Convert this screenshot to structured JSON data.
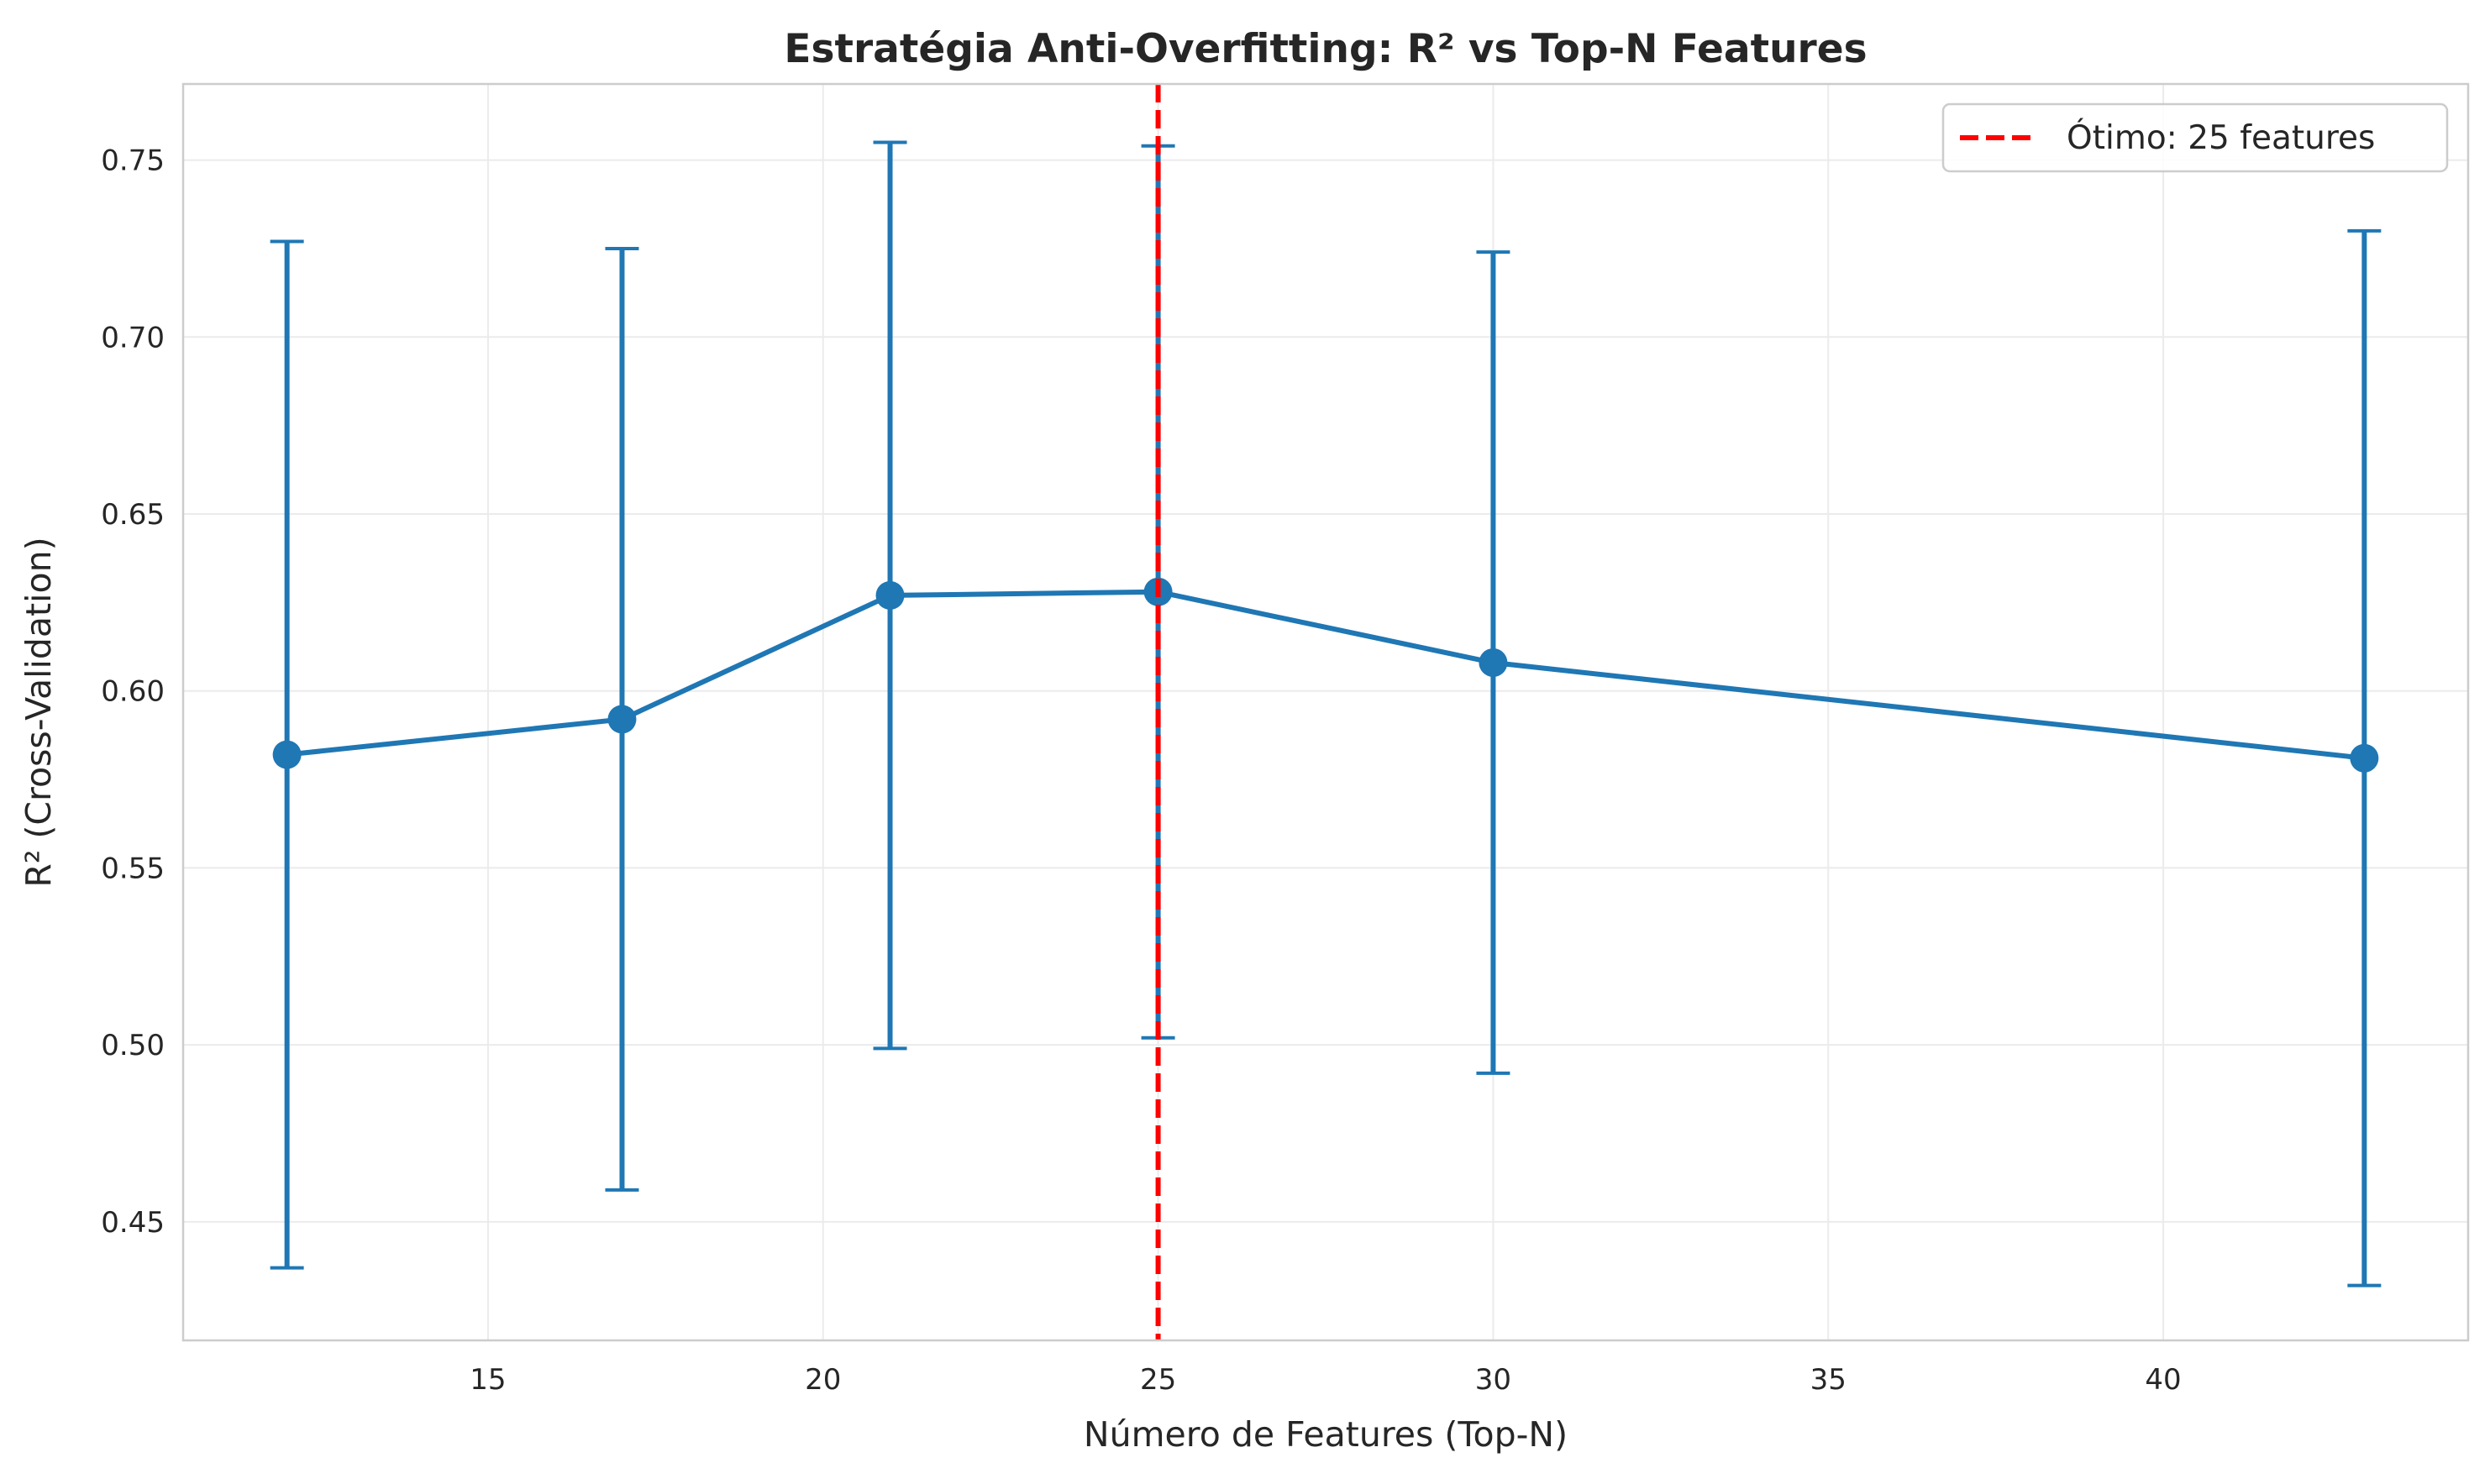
{
  "chart_data": {
    "type": "line",
    "title": "Estratégia Anti-Overfitting: R² vs Top-N Features",
    "xlabel": "Número de Features (Top-N)",
    "ylabel": "R² (Cross-Validation)",
    "xlim": [
      10.45,
      44.55
    ],
    "ylim": [
      0.4165,
      0.7715
    ],
    "x_ticks": [
      15,
      20,
      25,
      30,
      35,
      40
    ],
    "y_ticks": [
      0.45,
      0.5,
      0.55,
      0.6,
      0.65,
      0.7,
      0.75
    ],
    "grid": true,
    "series": [
      {
        "x": [
          12,
          17,
          21,
          25,
          30,
          43
        ],
        "y": [
          0.582,
          0.592,
          0.627,
          0.628,
          0.608,
          0.581
        ],
        "error": [
          0.145,
          0.133,
          0.128,
          0.126,
          0.116,
          0.149
        ],
        "color": "#1f77b4",
        "error_bars": true
      }
    ],
    "reference_line": {
      "orientation": "vertical",
      "x": 25,
      "style": "dashed",
      "color": "#ff0000",
      "label": "Ótimo: 25 features"
    },
    "legend": {
      "position": "top-right",
      "entries": [
        "Ótimo: 25 features"
      ]
    }
  }
}
